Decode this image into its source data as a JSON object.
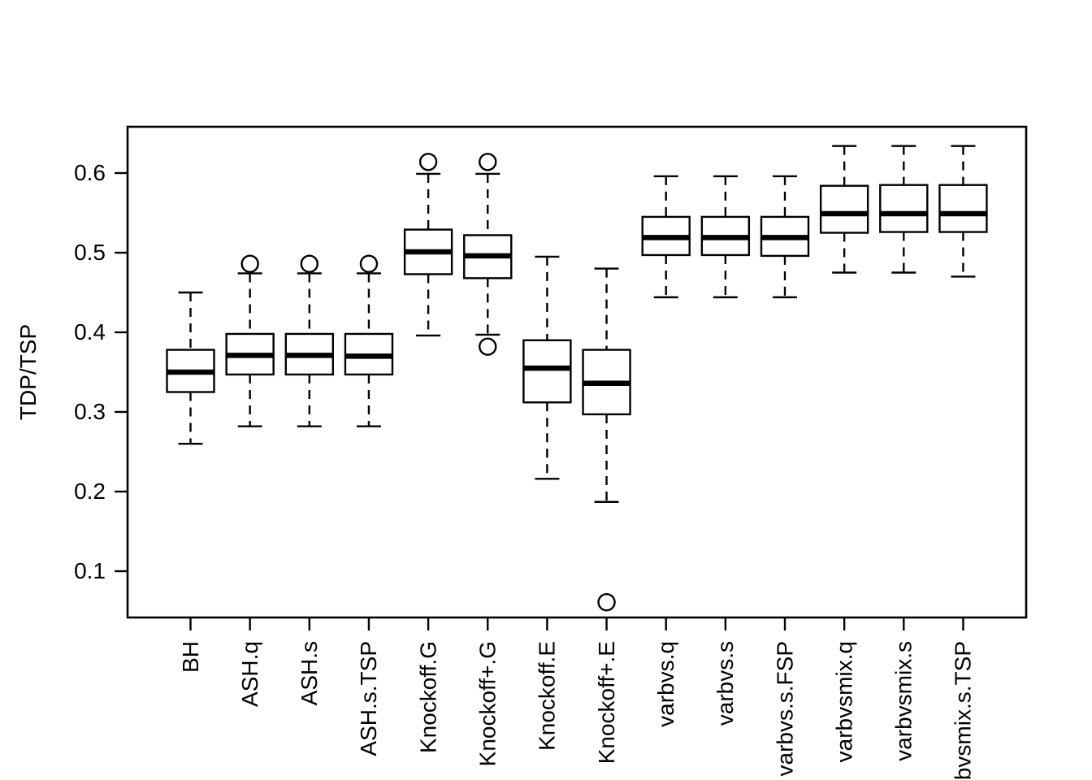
{
  "figure": {
    "background": "#ffffff",
    "ink": "#000000"
  },
  "chart_data": {
    "type": "boxplot",
    "title": "",
    "xlabel": "",
    "ylabel": "TDP/TSP",
    "ylim": [
      0.04,
      0.66
    ],
    "yticks": [
      "0.1",
      "0.2",
      "0.3",
      "0.4",
      "0.5",
      "0.6"
    ],
    "grid": false,
    "legend": null,
    "orientation": "vertical",
    "outlier_marker": "open-circle",
    "x_label_rotation": 90,
    "categories": [
      "BH",
      "ASH.q",
      "ASH.s",
      "ASH.s.TSP",
      "Knockoff.G",
      "Knockoff+.G",
      "Knockoff.E",
      "Knockoff+.E",
      "varbvs.q",
      "varbvs.s",
      "varbvs.s.FSP",
      "varbvsmix.q",
      "varbvsmix.s",
      "varbvsmix.s.TSP"
    ],
    "boxes": [
      {
        "label": "BH",
        "whisker_low": 0.26,
        "q1": 0.325,
        "median": 0.35,
        "q3": 0.378,
        "whisker_high": 0.45,
        "outliers": []
      },
      {
        "label": "ASH.q",
        "whisker_low": 0.282,
        "q1": 0.347,
        "median": 0.371,
        "q3": 0.398,
        "whisker_high": 0.474,
        "outliers": [
          0.486
        ]
      },
      {
        "label": "ASH.s",
        "whisker_low": 0.282,
        "q1": 0.347,
        "median": 0.371,
        "q3": 0.398,
        "whisker_high": 0.474,
        "outliers": [
          0.486
        ]
      },
      {
        "label": "ASH.s.TSP",
        "whisker_low": 0.282,
        "q1": 0.347,
        "median": 0.37,
        "q3": 0.398,
        "whisker_high": 0.474,
        "outliers": [
          0.486
        ]
      },
      {
        "label": "Knockoff.G",
        "whisker_low": 0.396,
        "q1": 0.473,
        "median": 0.501,
        "q3": 0.529,
        "whisker_high": 0.599,
        "outliers": [
          0.614
        ]
      },
      {
        "label": "Knockoff+.G",
        "whisker_low": 0.397,
        "q1": 0.468,
        "median": 0.496,
        "q3": 0.522,
        "whisker_high": 0.599,
        "outliers": [
          0.614,
          0.382
        ]
      },
      {
        "label": "Knockoff.E",
        "whisker_low": 0.216,
        "q1": 0.312,
        "median": 0.355,
        "q3": 0.39,
        "whisker_high": 0.495,
        "outliers": []
      },
      {
        "label": "Knockoff+.E",
        "whisker_low": 0.187,
        "q1": 0.297,
        "median": 0.336,
        "q3": 0.378,
        "whisker_high": 0.48,
        "outliers": [
          0.061
        ]
      },
      {
        "label": "varbvs.q",
        "whisker_low": 0.444,
        "q1": 0.497,
        "median": 0.519,
        "q3": 0.545,
        "whisker_high": 0.596,
        "outliers": []
      },
      {
        "label": "varbvs.s",
        "whisker_low": 0.444,
        "q1": 0.497,
        "median": 0.519,
        "q3": 0.545,
        "whisker_high": 0.596,
        "outliers": []
      },
      {
        "label": "varbvs.s.FSP",
        "whisker_low": 0.444,
        "q1": 0.496,
        "median": 0.519,
        "q3": 0.545,
        "whisker_high": 0.596,
        "outliers": []
      },
      {
        "label": "varbvsmix.q",
        "whisker_low": 0.475,
        "q1": 0.525,
        "median": 0.549,
        "q3": 0.584,
        "whisker_high": 0.634,
        "outliers": []
      },
      {
        "label": "varbvsmix.s",
        "whisker_low": 0.475,
        "q1": 0.526,
        "median": 0.549,
        "q3": 0.585,
        "whisker_high": 0.634,
        "outliers": []
      },
      {
        "label": "varbvsmix.s.TSP",
        "whisker_low": 0.47,
        "q1": 0.526,
        "median": 0.549,
        "q3": 0.585,
        "whisker_high": 0.634,
        "outliers": []
      }
    ]
  }
}
